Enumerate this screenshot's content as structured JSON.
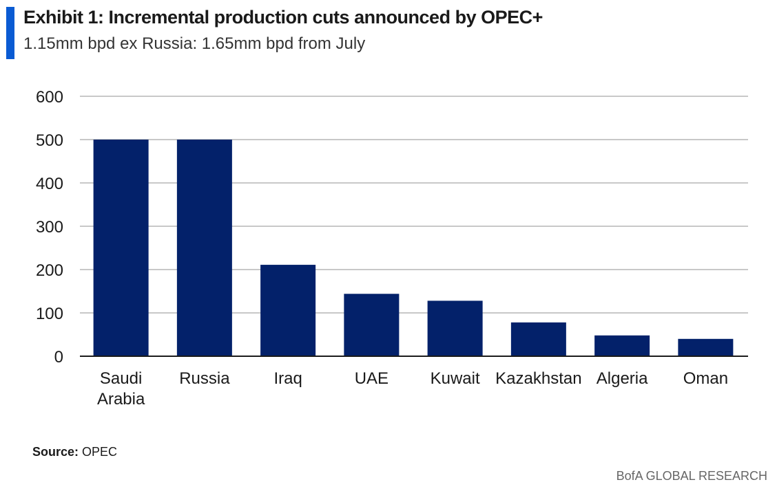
{
  "header": {
    "title": "Exhibit 1: Incremental production cuts announced by OPEC+",
    "subtitle": "1.15mm bpd ex Russia: 1.65mm bpd from July"
  },
  "chart_data": {
    "type": "bar",
    "title": "Exhibit 1: Incremental production cuts announced by OPEC+",
    "subtitle": "1.15mm bpd ex Russia: 1.65mm bpd from July",
    "categories": [
      [
        "Saudi",
        "Arabia"
      ],
      [
        "Russia"
      ],
      [
        "Iraq"
      ],
      [
        "UAE"
      ],
      [
        "Kuwait"
      ],
      [
        "Kazakhstan"
      ],
      [
        "Algeria"
      ],
      [
        "Oman"
      ]
    ],
    "values": [
      500,
      500,
      211,
      144,
      128,
      78,
      48,
      40
    ],
    "yticks": [
      "0",
      "100",
      "200",
      "300",
      "400",
      "500",
      "600"
    ],
    "ylim": [
      0,
      600
    ],
    "xlabel": "",
    "ylabel": "",
    "grid": true,
    "colors": {
      "bar": "#03216a",
      "grid": "#c8c8c8",
      "axis": "#1a1a1a",
      "accent": "#0a5bd3"
    }
  },
  "footer": {
    "source_label": "Source:",
    "source_text": "OPEC",
    "brand": "BofA GLOBAL RESEARCH"
  }
}
